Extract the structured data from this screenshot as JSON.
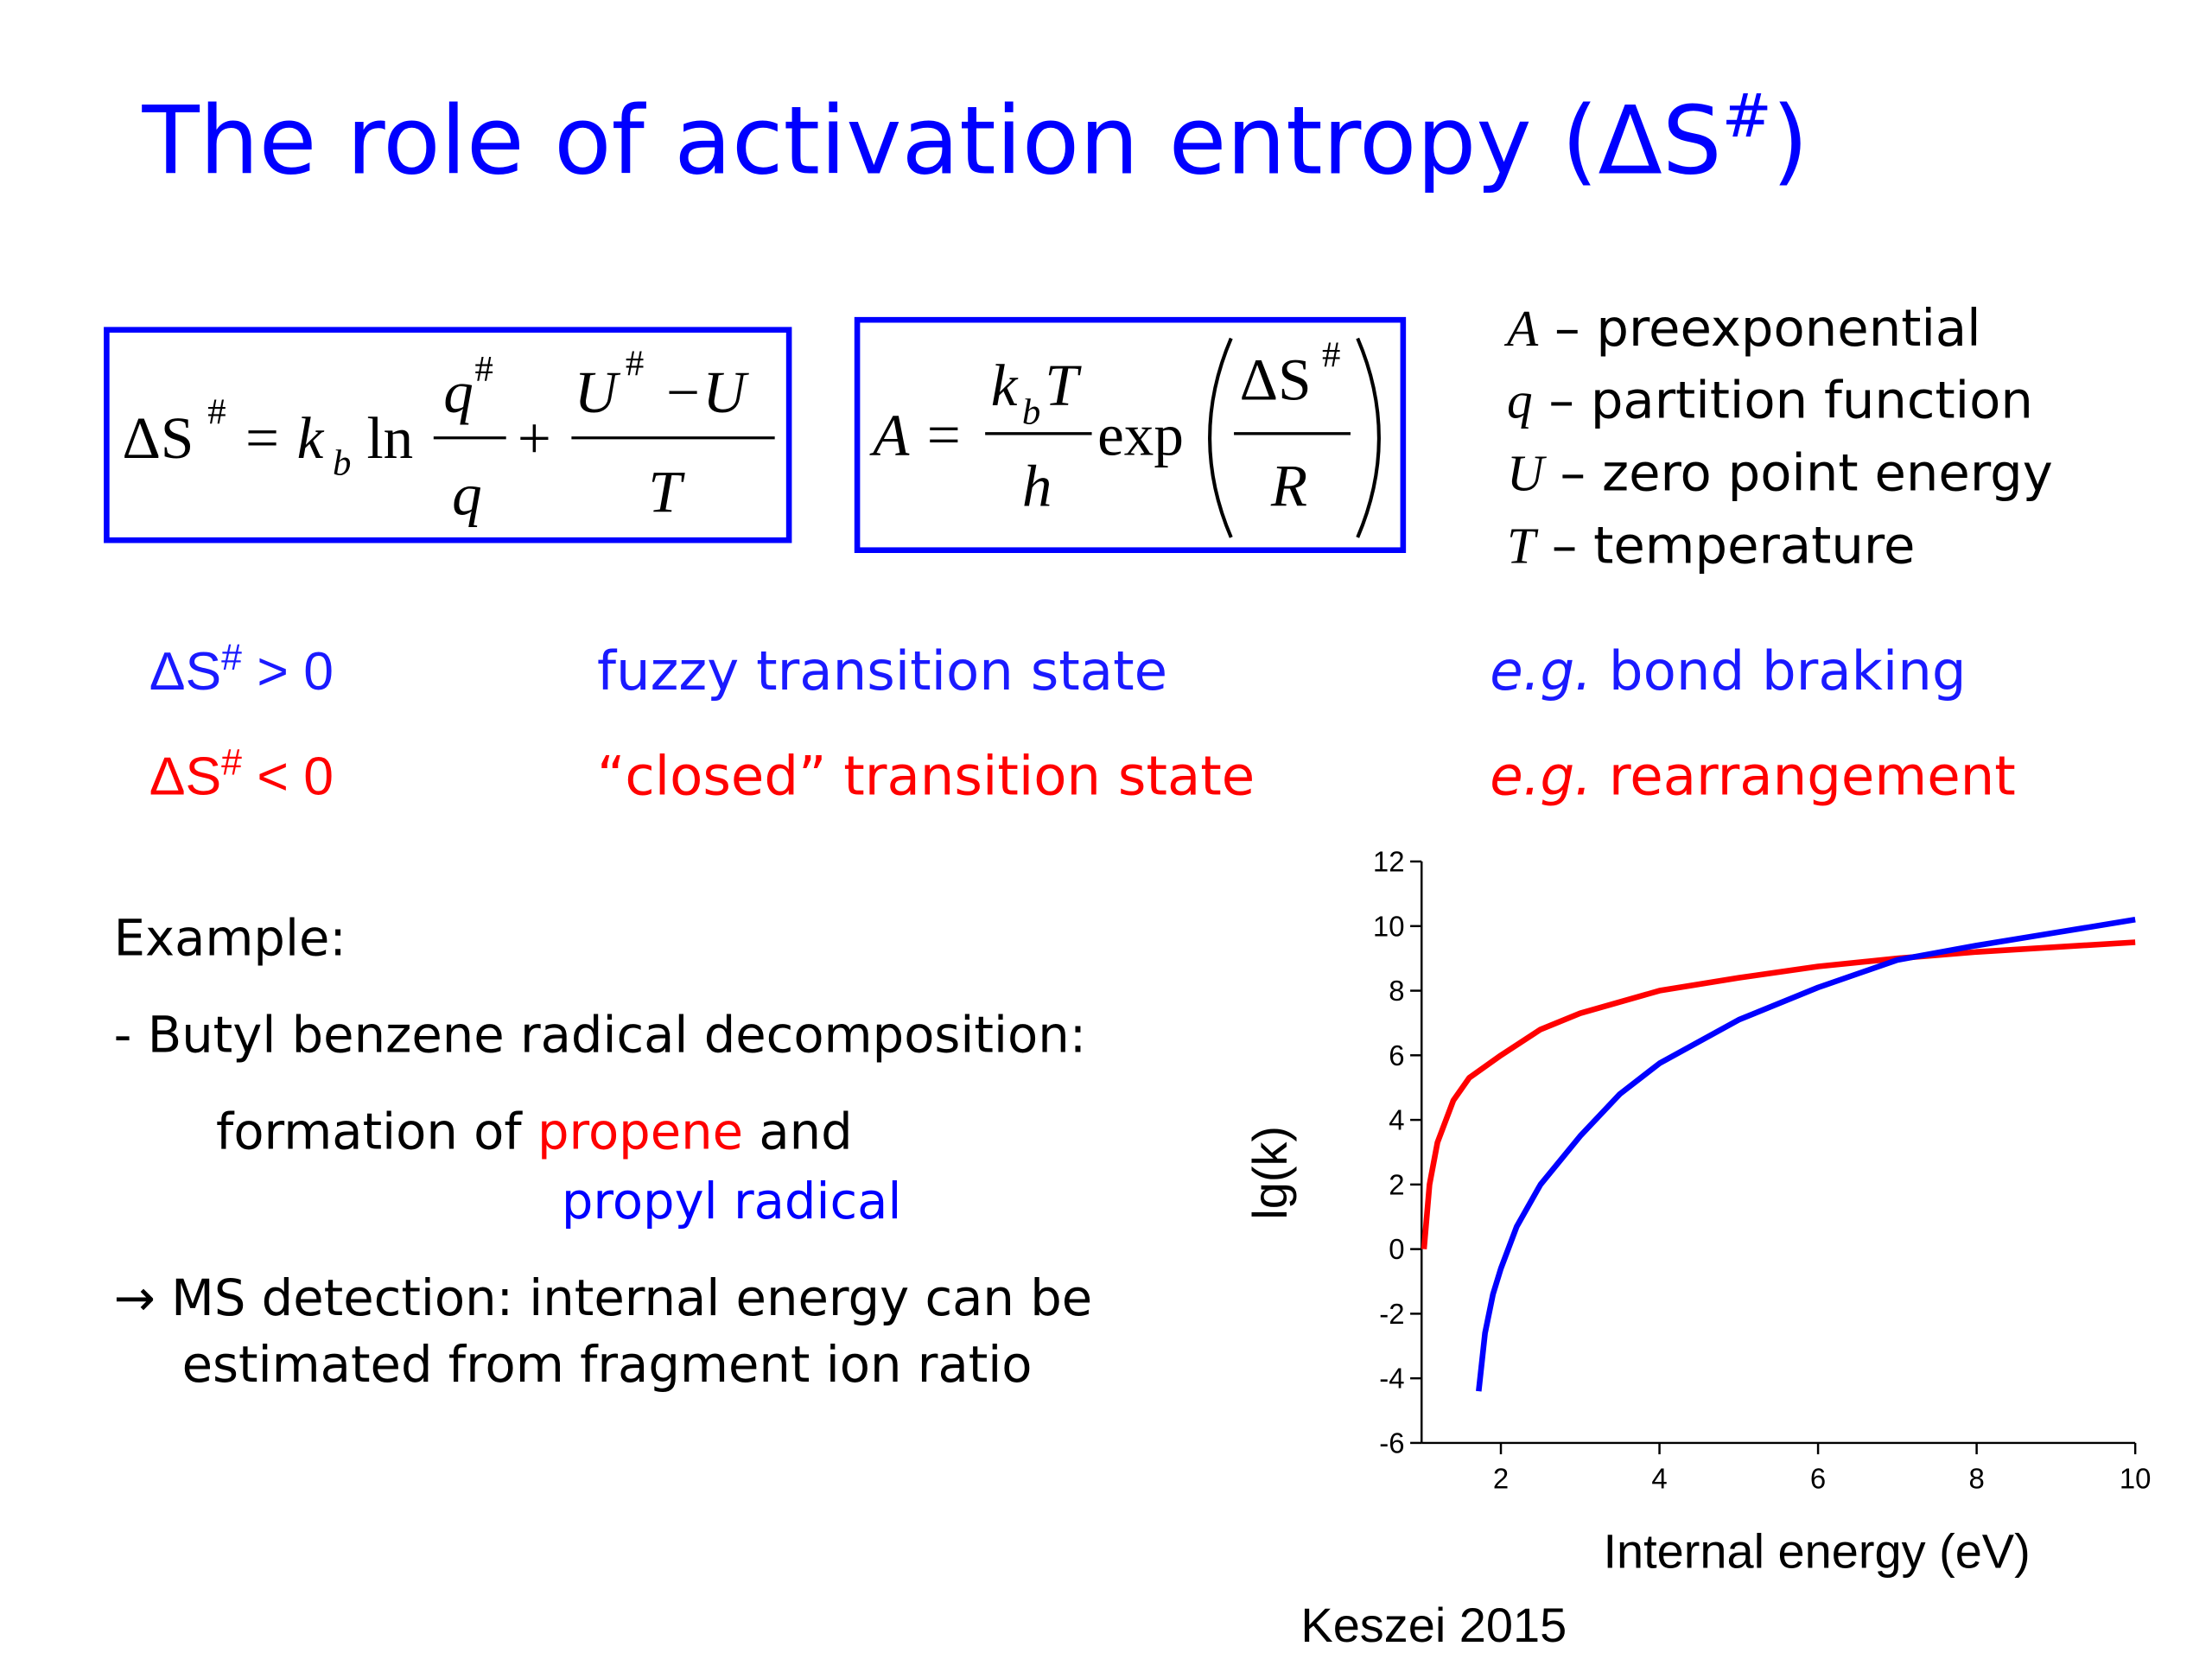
{
  "title": {
    "main": "The role of activation entropy (ΔS",
    "sup": "#",
    "close": ")"
  },
  "formula1": {
    "lhs": "ΔS",
    "lhs_sup": "#",
    "eq": "= k",
    "k_sub": "b",
    "ln": "ln",
    "num1": "q",
    "num1_sup": "#",
    "den1": "q",
    "plus": "+",
    "num2": "U",
    "num2_sup": "#",
    "num2_rest": "−U",
    "den2": "T"
  },
  "formula2": {
    "lhs": "A =",
    "num1": "k",
    "num1_sub": "b",
    "num1_rest": "T",
    "den1": "h",
    "exp": "exp",
    "num2": "ΔS",
    "num2_sup": "#",
    "den2": "R"
  },
  "definitions": [
    {
      "symbol": "A",
      "text": " – preexponential"
    },
    {
      "symbol": "q",
      "text": " – partition function"
    },
    {
      "symbol": "U",
      "text": " – zero point energy"
    },
    {
      "symbol": "T",
      "text": " – temperature"
    }
  ],
  "conditions": [
    {
      "lhs": "ΔS",
      "sup": "#",
      "rhs": " > 0",
      "state": "fuzzy transition state",
      "eg": "e.g.",
      "example": " bond braking"
    },
    {
      "lhs": "ΔS",
      "sup": "#",
      "rhs": " < 0",
      "state": "“closed” transition state",
      "eg": "e.g.",
      "example": " rearrangement"
    }
  ],
  "example": {
    "heading": "Example:",
    "item": "- Butyl benzene radical decomposition:",
    "formation": "formation of ",
    "product1": "propene",
    "and": " and",
    "product2": "propyl radical",
    "arrow": "→ MS detection: internal energy can be",
    "arrow_cont": "estimated from fragment ion ratio"
  },
  "source": "Keszei 2015",
  "chart_data": {
    "type": "line",
    "xlabel": "Internal energy (eV)",
    "ylabel": "lg(k)",
    "xlim": [
      1,
      10
    ],
    "ylim": [
      -6,
      12
    ],
    "xticks": [
      2,
      4,
      6,
      8,
      10
    ],
    "yticks": [
      -6,
      -4,
      -2,
      0,
      2,
      4,
      6,
      8,
      10,
      12
    ],
    "grid": false,
    "series": [
      {
        "color": "#ff0000",
        "x": [
          1.03,
          1.1,
          1.2,
          1.4,
          1.6,
          2,
          2.5,
          3,
          4,
          5,
          6,
          7,
          8,
          9,
          10
        ],
        "values": [
          0,
          2.0,
          3.3,
          4.6,
          5.3,
          6.0,
          6.8,
          7.3,
          8.0,
          8.4,
          8.75,
          9.0,
          9.2,
          9.35,
          9.5
        ]
      },
      {
        "color": "#0000ff",
        "x": [
          1.72,
          1.8,
          1.9,
          2.0,
          2.2,
          2.5,
          3,
          3.5,
          4,
          5,
          6,
          7,
          8,
          9,
          10
        ],
        "values": [
          -4.4,
          -2.6,
          -1.4,
          -0.6,
          0.7,
          2.0,
          3.5,
          4.8,
          5.75,
          7.1,
          8.1,
          8.95,
          9.4,
          9.8,
          10.2
        ]
      }
    ]
  }
}
